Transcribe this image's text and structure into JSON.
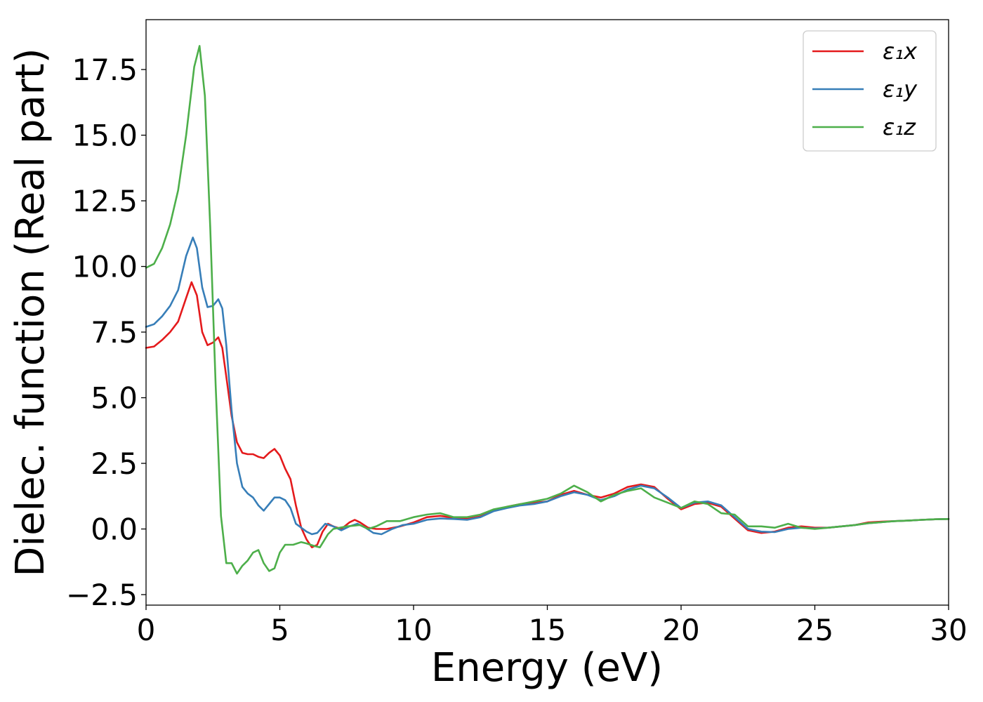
{
  "chart_data": {
    "type": "line",
    "title": "",
    "xlabel": "Energy (eV)",
    "ylabel": "Dielec. function (Real part)",
    "xlim": [
      0,
      30
    ],
    "ylim": [
      -2.9,
      19.4
    ],
    "xticks": [
      0,
      5,
      10,
      15,
      20,
      25,
      30
    ],
    "xtick_labels": [
      "0",
      "5",
      "10",
      "15",
      "20",
      "25",
      "30"
    ],
    "yticks": [
      -2.5,
      0.0,
      2.5,
      5.0,
      7.5,
      10.0,
      12.5,
      15.0,
      17.5
    ],
    "ytick_labels": [
      "−2.5",
      "0.0",
      "2.5",
      "5.0",
      "7.5",
      "10.0",
      "12.5",
      "15.0",
      "17.5"
    ],
    "grid": false,
    "legend_position": "top-right",
    "series": [
      {
        "name": "ε₁x",
        "color": "#e41a1c",
        "points": [
          [
            0,
            6.9
          ],
          [
            0.3,
            6.95
          ],
          [
            0.6,
            7.2
          ],
          [
            0.9,
            7.5
          ],
          [
            1.2,
            7.9
          ],
          [
            1.5,
            8.8
          ],
          [
            1.7,
            9.4
          ],
          [
            1.9,
            8.9
          ],
          [
            2.1,
            7.5
          ],
          [
            2.3,
            7.0
          ],
          [
            2.5,
            7.1
          ],
          [
            2.7,
            7.3
          ],
          [
            2.85,
            6.9
          ],
          [
            3.0,
            5.8
          ],
          [
            3.2,
            4.3
          ],
          [
            3.4,
            3.3
          ],
          [
            3.6,
            2.9
          ],
          [
            3.8,
            2.85
          ],
          [
            4.0,
            2.85
          ],
          [
            4.2,
            2.75
          ],
          [
            4.4,
            2.7
          ],
          [
            4.6,
            2.9
          ],
          [
            4.8,
            3.05
          ],
          [
            5.0,
            2.8
          ],
          [
            5.2,
            2.3
          ],
          [
            5.4,
            1.9
          ],
          [
            5.6,
            0.9
          ],
          [
            5.8,
            0.05
          ],
          [
            6.0,
            -0.4
          ],
          [
            6.2,
            -0.7
          ],
          [
            6.4,
            -0.6
          ],
          [
            6.6,
            -0.1
          ],
          [
            6.8,
            0.2
          ],
          [
            7.0,
            0.1
          ],
          [
            7.3,
            0.0
          ],
          [
            7.6,
            0.25
          ],
          [
            7.8,
            0.35
          ],
          [
            8.0,
            0.25
          ],
          [
            8.3,
            0.05
          ],
          [
            8.6,
            0.0
          ],
          [
            9.0,
            0.0
          ],
          [
            9.5,
            0.1
          ],
          [
            10.0,
            0.25
          ],
          [
            10.5,
            0.45
          ],
          [
            11.0,
            0.5
          ],
          [
            11.5,
            0.42
          ],
          [
            12.0,
            0.38
          ],
          [
            12.5,
            0.48
          ],
          [
            13.0,
            0.7
          ],
          [
            13.5,
            0.85
          ],
          [
            14.0,
            0.95
          ],
          [
            14.5,
            1.0
          ],
          [
            15.0,
            1.05
          ],
          [
            15.5,
            1.3
          ],
          [
            16.0,
            1.45
          ],
          [
            16.5,
            1.3
          ],
          [
            17.0,
            1.2
          ],
          [
            17.5,
            1.35
          ],
          [
            18.0,
            1.6
          ],
          [
            18.5,
            1.7
          ],
          [
            19.0,
            1.6
          ],
          [
            19.5,
            1.15
          ],
          [
            20.0,
            0.75
          ],
          [
            20.5,
            0.95
          ],
          [
            21.0,
            1.0
          ],
          [
            21.5,
            0.85
          ],
          [
            22.0,
            0.4
          ],
          [
            22.5,
            -0.05
          ],
          [
            23.0,
            -0.15
          ],
          [
            23.5,
            -0.1
          ],
          [
            24.0,
            0.05
          ],
          [
            24.5,
            0.1
          ],
          [
            25.0,
            0.05
          ],
          [
            25.5,
            0.05
          ],
          [
            26.0,
            0.1
          ],
          [
            26.5,
            0.15
          ],
          [
            27.0,
            0.25
          ],
          [
            27.5,
            0.28
          ],
          [
            28.0,
            0.3
          ],
          [
            28.5,
            0.32
          ],
          [
            29.0,
            0.35
          ],
          [
            29.5,
            0.37
          ],
          [
            30.0,
            0.38
          ]
        ]
      },
      {
        "name": "ε₁y",
        "color": "#377eb8",
        "points": [
          [
            0,
            7.7
          ],
          [
            0.3,
            7.8
          ],
          [
            0.6,
            8.1
          ],
          [
            0.9,
            8.5
          ],
          [
            1.2,
            9.1
          ],
          [
            1.5,
            10.4
          ],
          [
            1.75,
            11.1
          ],
          [
            1.9,
            10.7
          ],
          [
            2.1,
            9.2
          ],
          [
            2.3,
            8.45
          ],
          [
            2.5,
            8.5
          ],
          [
            2.7,
            8.75
          ],
          [
            2.85,
            8.4
          ],
          [
            3.0,
            7.0
          ],
          [
            3.2,
            4.5
          ],
          [
            3.4,
            2.5
          ],
          [
            3.6,
            1.6
          ],
          [
            3.8,
            1.35
          ],
          [
            4.0,
            1.2
          ],
          [
            4.2,
            0.9
          ],
          [
            4.4,
            0.7
          ],
          [
            4.6,
            0.95
          ],
          [
            4.8,
            1.2
          ],
          [
            5.0,
            1.2
          ],
          [
            5.2,
            1.1
          ],
          [
            5.4,
            0.8
          ],
          [
            5.6,
            0.2
          ],
          [
            5.8,
            0.05
          ],
          [
            6.0,
            -0.1
          ],
          [
            6.2,
            -0.2
          ],
          [
            6.4,
            -0.15
          ],
          [
            6.7,
            0.2
          ],
          [
            7.0,
            0.1
          ],
          [
            7.3,
            -0.05
          ],
          [
            7.6,
            0.1
          ],
          [
            7.9,
            0.2
          ],
          [
            8.2,
            0.05
          ],
          [
            8.5,
            -0.15
          ],
          [
            8.8,
            -0.2
          ],
          [
            9.2,
            0.0
          ],
          [
            9.6,
            0.15
          ],
          [
            10.0,
            0.2
          ],
          [
            10.5,
            0.35
          ],
          [
            11.0,
            0.4
          ],
          [
            11.5,
            0.38
          ],
          [
            12.0,
            0.35
          ],
          [
            12.5,
            0.45
          ],
          [
            13.0,
            0.68
          ],
          [
            13.5,
            0.8
          ],
          [
            14.0,
            0.9
          ],
          [
            14.5,
            0.95
          ],
          [
            15.0,
            1.05
          ],
          [
            15.5,
            1.25
          ],
          [
            16.0,
            1.4
          ],
          [
            16.5,
            1.3
          ],
          [
            17.0,
            1.1
          ],
          [
            17.5,
            1.25
          ],
          [
            18.0,
            1.5
          ],
          [
            18.5,
            1.65
          ],
          [
            19.0,
            1.55
          ],
          [
            19.5,
            1.2
          ],
          [
            20.0,
            0.8
          ],
          [
            20.5,
            1.0
          ],
          [
            21.0,
            1.05
          ],
          [
            21.5,
            0.9
          ],
          [
            22.0,
            0.45
          ],
          [
            22.5,
            0.0
          ],
          [
            23.0,
            -0.1
          ],
          [
            23.5,
            -0.12
          ],
          [
            24.0,
            0.0
          ],
          [
            24.5,
            0.05
          ],
          [
            25.0,
            0.02
          ],
          [
            25.5,
            0.05
          ],
          [
            26.0,
            0.1
          ],
          [
            26.5,
            0.15
          ],
          [
            27.0,
            0.22
          ],
          [
            27.5,
            0.26
          ],
          [
            28.0,
            0.3
          ],
          [
            28.5,
            0.32
          ],
          [
            29.0,
            0.35
          ],
          [
            29.5,
            0.37
          ],
          [
            30.0,
            0.38
          ]
        ]
      },
      {
        "name": "ε₁z",
        "color": "#4daf4a",
        "points": [
          [
            0,
            9.95
          ],
          [
            0.3,
            10.1
          ],
          [
            0.6,
            10.7
          ],
          [
            0.9,
            11.6
          ],
          [
            1.2,
            12.9
          ],
          [
            1.5,
            15.0
          ],
          [
            1.8,
            17.6
          ],
          [
            2.0,
            18.4
          ],
          [
            2.2,
            16.5
          ],
          [
            2.4,
            11.5
          ],
          [
            2.6,
            5.5
          ],
          [
            2.8,
            0.5
          ],
          [
            3.0,
            -1.3
          ],
          [
            3.2,
            -1.3
          ],
          [
            3.4,
            -1.7
          ],
          [
            3.6,
            -1.4
          ],
          [
            3.8,
            -1.2
          ],
          [
            4.0,
            -0.9
          ],
          [
            4.2,
            -0.8
          ],
          [
            4.4,
            -1.3
          ],
          [
            4.6,
            -1.6
          ],
          [
            4.8,
            -1.5
          ],
          [
            5.0,
            -0.9
          ],
          [
            5.2,
            -0.6
          ],
          [
            5.5,
            -0.6
          ],
          [
            5.8,
            -0.5
          ],
          [
            6.0,
            -0.55
          ],
          [
            6.3,
            -0.65
          ],
          [
            6.5,
            -0.7
          ],
          [
            6.8,
            -0.2
          ],
          [
            7.0,
            0.0
          ],
          [
            7.5,
            0.1
          ],
          [
            8.0,
            0.15
          ],
          [
            8.3,
            0.0
          ],
          [
            8.6,
            0.1
          ],
          [
            9.0,
            0.3
          ],
          [
            9.5,
            0.3
          ],
          [
            10.0,
            0.45
          ],
          [
            10.5,
            0.55
          ],
          [
            11.0,
            0.6
          ],
          [
            11.5,
            0.45
          ],
          [
            12.0,
            0.45
          ],
          [
            12.5,
            0.55
          ],
          [
            13.0,
            0.75
          ],
          [
            13.5,
            0.85
          ],
          [
            14.0,
            0.95
          ],
          [
            14.5,
            1.05
          ],
          [
            15.0,
            1.15
          ],
          [
            15.5,
            1.35
          ],
          [
            16.0,
            1.65
          ],
          [
            16.5,
            1.4
          ],
          [
            17.0,
            1.05
          ],
          [
            17.5,
            1.3
          ],
          [
            18.0,
            1.45
          ],
          [
            18.5,
            1.55
          ],
          [
            19.0,
            1.2
          ],
          [
            19.5,
            1.0
          ],
          [
            20.0,
            0.8
          ],
          [
            20.5,
            1.05
          ],
          [
            21.0,
            0.95
          ],
          [
            21.5,
            0.6
          ],
          [
            22.0,
            0.55
          ],
          [
            22.5,
            0.1
          ],
          [
            23.0,
            0.1
          ],
          [
            23.5,
            0.05
          ],
          [
            24.0,
            0.2
          ],
          [
            24.5,
            0.05
          ],
          [
            25.0,
            0.0
          ],
          [
            25.5,
            0.05
          ],
          [
            26.0,
            0.1
          ],
          [
            26.5,
            0.15
          ],
          [
            27.0,
            0.22
          ],
          [
            27.5,
            0.26
          ],
          [
            28.0,
            0.3
          ],
          [
            28.5,
            0.32
          ],
          [
            29.0,
            0.35
          ],
          [
            29.5,
            0.37
          ],
          [
            30.0,
            0.38
          ]
        ]
      }
    ]
  }
}
